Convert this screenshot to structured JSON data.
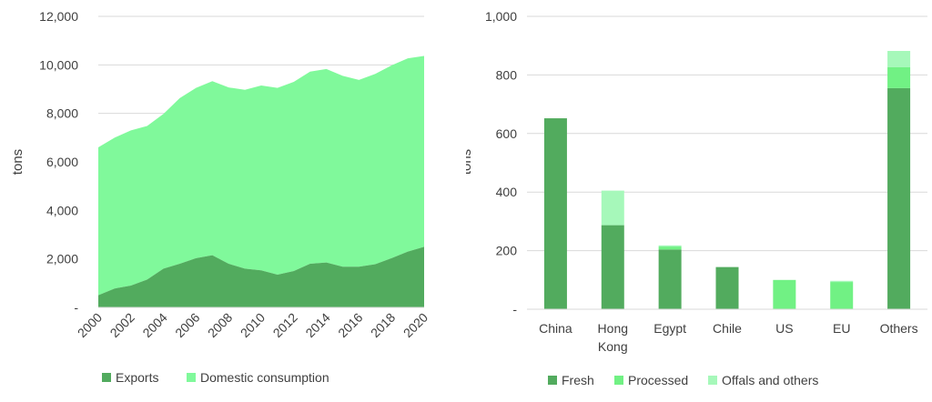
{
  "colors": {
    "exports": "#52ab5e",
    "domestic": "#80f99b",
    "fresh": "#52ab5e",
    "processed": "#71f184",
    "offals": "#a6f8ba",
    "grid": "#d9d9d9",
    "text": "#404040"
  },
  "chart_data": [
    {
      "type": "area",
      "stacked": true,
      "ylabel": "tons",
      "xlabel": "",
      "ylim": [
        0,
        12000
      ],
      "yticks": [
        "-",
        "2,000",
        "4,000",
        "6,000",
        "8,000",
        "10,000",
        "12,000"
      ],
      "ytick_values": [
        0,
        2000,
        4000,
        6000,
        8000,
        10000,
        12000
      ],
      "xticks": [
        "2000",
        "2002",
        "2004",
        "2006",
        "2008",
        "2010",
        "2012",
        "2014",
        "2016",
        "2018",
        "2020"
      ],
      "x": [
        2000,
        2001,
        2002,
        2003,
        2004,
        2005,
        2006,
        2007,
        2008,
        2009,
        2010,
        2011,
        2012,
        2013,
        2014,
        2015,
        2016,
        2017,
        2018,
        2019,
        2020
      ],
      "series": [
        {
          "name": "Exports",
          "values": [
            500,
            780,
            900,
            1150,
            1600,
            1800,
            2030,
            2150,
            1800,
            1600,
            1530,
            1350,
            1500,
            1800,
            1850,
            1680,
            1680,
            1780,
            2030,
            2300,
            2500
          ]
        },
        {
          "name": "Domestic consumption",
          "values": [
            6100,
            6220,
            6400,
            6330,
            6380,
            6830,
            7020,
            7180,
            7270,
            7370,
            7620,
            7700,
            7800,
            7920,
            7980,
            7870,
            7700,
            7850,
            7950,
            7970,
            7870
          ]
        }
      ],
      "legend_position": "bottom",
      "grid": true
    },
    {
      "type": "bar",
      "stacked": true,
      "ylabel": "tons",
      "xlabel": "",
      "ylim": [
        0,
        1000
      ],
      "yticks": [
        "-",
        "200",
        "400",
        "600",
        "800",
        "1,000"
      ],
      "ytick_values": [
        0,
        200,
        400,
        600,
        800,
        1000
      ],
      "categories": [
        [
          "China"
        ],
        [
          "Hong",
          "Kong"
        ],
        [
          "Egypt"
        ],
        [
          "Chile"
        ],
        [
          "US"
        ],
        [
          "EU"
        ],
        [
          "Others"
        ]
      ],
      "series": [
        {
          "name": "Fresh",
          "values": [
            652,
            287,
            204,
            144,
            0,
            0,
            755
          ]
        },
        {
          "name": "Processed",
          "values": [
            0,
            0,
            10,
            0,
            100,
            93,
            72
          ]
        },
        {
          "name": "Offals and others",
          "values": [
            0,
            118,
            4,
            0,
            0,
            4,
            55
          ]
        }
      ],
      "legend_position": "bottom",
      "grid": true
    }
  ]
}
